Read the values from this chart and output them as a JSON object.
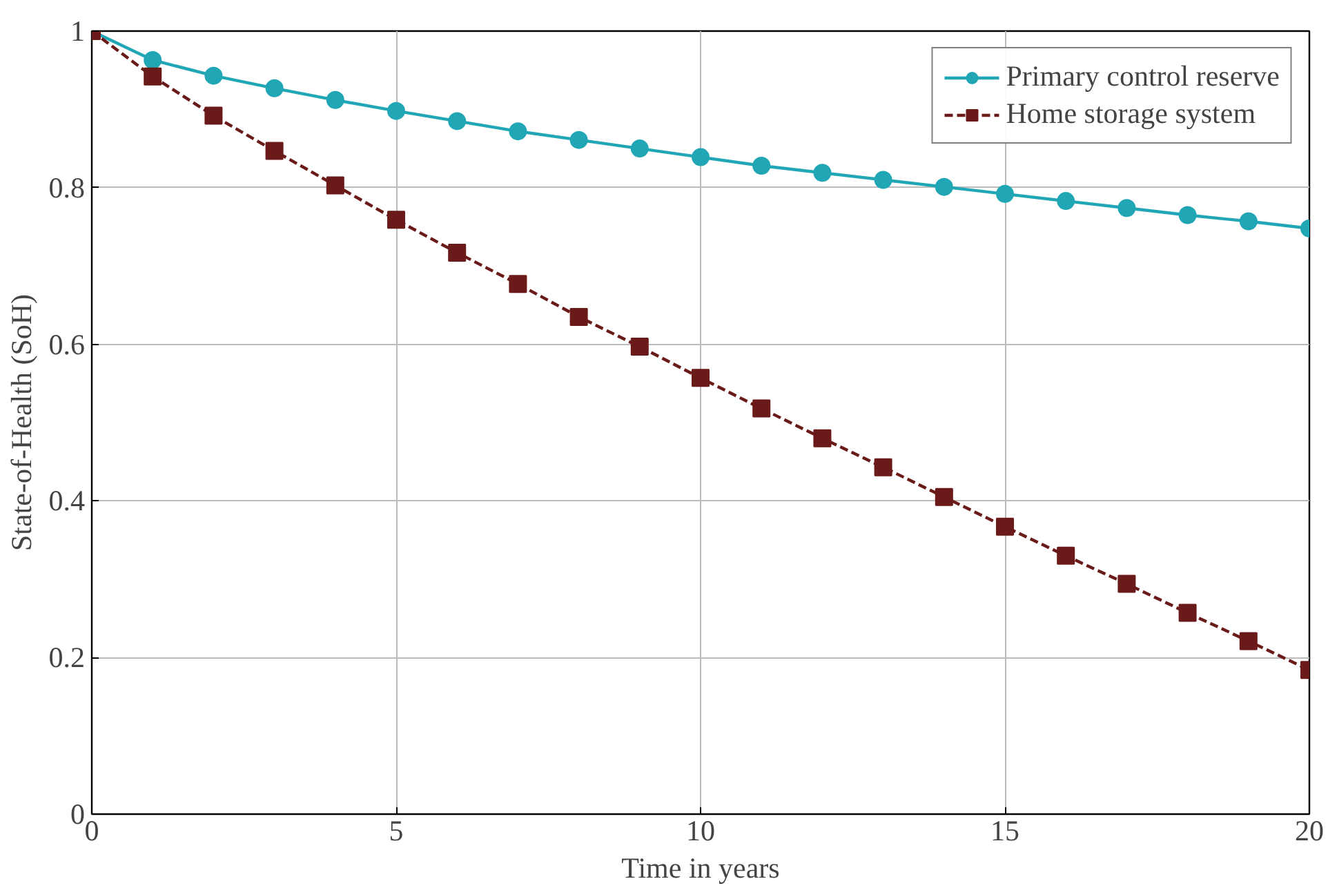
{
  "chart_data": {
    "type": "line",
    "xlabel": "Time in years",
    "ylabel": "State-of-Health (SoH)",
    "x": [
      0,
      1,
      2,
      3,
      4,
      5,
      6,
      7,
      8,
      9,
      10,
      11,
      12,
      13,
      14,
      15,
      16,
      17,
      18,
      19,
      20
    ],
    "series": [
      {
        "name": "Primary control reserve",
        "color": "#21a6b5",
        "marker": "circle",
        "line_style": "solid",
        "values": [
          1.0,
          0.963,
          0.943,
          0.927,
          0.912,
          0.898,
          0.885,
          0.872,
          0.861,
          0.85,
          0.839,
          0.828,
          0.819,
          0.81,
          0.801,
          0.792,
          0.783,
          0.774,
          0.765,
          0.757,
          0.748
        ]
      },
      {
        "name": "Home storage system",
        "color": "#6b1a1a",
        "marker": "square",
        "line_style": "dashed",
        "values": [
          1.0,
          0.942,
          0.892,
          0.847,
          0.803,
          0.759,
          0.717,
          0.677,
          0.635,
          0.597,
          0.557,
          0.518,
          0.48,
          0.443,
          0.405,
          0.367,
          0.33,
          0.294,
          0.257,
          0.221,
          0.184
        ]
      }
    ],
    "xlim": [
      0,
      20
    ],
    "ylim": [
      0,
      1
    ],
    "xticks": [
      0,
      5,
      10,
      15,
      20
    ],
    "yticks": [
      0,
      0.2,
      0.4,
      0.6,
      0.8,
      1
    ],
    "grid": true,
    "legend": "top right"
  }
}
